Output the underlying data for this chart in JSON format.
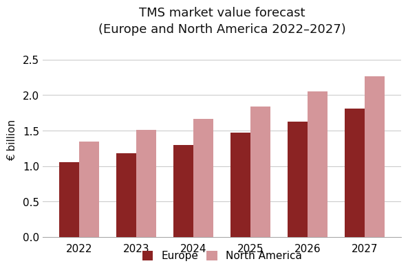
{
  "title": "TMS market value forecast\n(Europe and North America 2022–2027)",
  "ylabel": "€ billion",
  "years": [
    2022,
    2023,
    2024,
    2025,
    2026,
    2027
  ],
  "europe": [
    1.06,
    1.18,
    1.3,
    1.47,
    1.63,
    1.81
  ],
  "north_america": [
    1.35,
    1.51,
    1.67,
    1.84,
    2.05,
    2.27
  ],
  "europe_color": "#8B2323",
  "north_america_color": "#D4969A",
  "ylim": [
    0,
    2.75
  ],
  "yticks": [
    0.0,
    0.5,
    1.0,
    1.5,
    2.0,
    2.5
  ],
  "bar_width": 0.35,
  "legend_labels": [
    "Europe",
    "North America"
  ],
  "title_fontsize": 13,
  "axis_fontsize": 11,
  "tick_fontsize": 11,
  "legend_fontsize": 11,
  "background_color": "#ffffff",
  "grid_color": "#cccccc"
}
